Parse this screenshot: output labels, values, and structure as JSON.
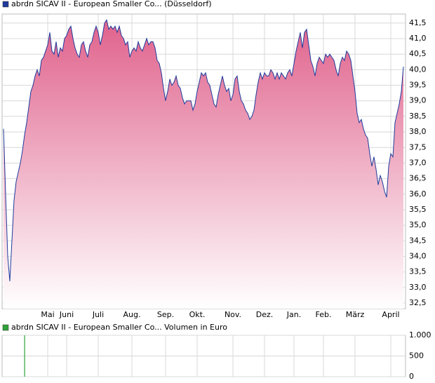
{
  "chart_data": [
    {
      "type": "area",
      "legend": "abrdn SICAV II - European Smaller Co... (Düsseldorf)",
      "color": "#1f3a9c",
      "fill_top": "#e0628c",
      "values": [
        38.1,
        36.0,
        34.0,
        33.2,
        34.5,
        35.8,
        36.4,
        36.7,
        37.0,
        37.4,
        37.9,
        38.3,
        38.8,
        39.3,
        39.5,
        39.8,
        40.0,
        39.8,
        40.3,
        40.4,
        40.6,
        40.8,
        41.2,
        40.6,
        40.5,
        40.9,
        40.4,
        40.7,
        40.6,
        41.0,
        41.1,
        41.3,
        41.4,
        41.0,
        40.7,
        40.5,
        40.4,
        40.8,
        40.9,
        40.6,
        40.4,
        40.8,
        40.9,
        41.2,
        41.4,
        41.2,
        40.8,
        41.1,
        41.5,
        41.6,
        41.3,
        41.4,
        41.3,
        41.4,
        41.2,
        41.4,
        41.1,
        41.0,
        40.8,
        40.9,
        40.4,
        40.6,
        40.7,
        40.6,
        40.9,
        40.7,
        40.6,
        40.8,
        41.0,
        40.8,
        40.9,
        40.9,
        40.7,
        40.3,
        40.2,
        39.9,
        39.4,
        39.0,
        39.3,
        39.7,
        39.5,
        39.6,
        39.8,
        39.5,
        39.4,
        39.1,
        38.9,
        39.0,
        39.0,
        39.0,
        38.7,
        38.9,
        39.3,
        39.6,
        39.9,
        39.8,
        39.9,
        39.6,
        39.5,
        39.2,
        38.9,
        38.8,
        39.2,
        39.5,
        39.8,
        39.5,
        39.3,
        39.4,
        39.0,
        39.2,
        39.7,
        39.8,
        39.3,
        39.0,
        38.9,
        38.7,
        38.6,
        38.4,
        38.5,
        38.7,
        39.2,
        39.6,
        39.9,
        39.7,
        39.9,
        39.8,
        39.8,
        40.0,
        39.9,
        39.7,
        39.9,
        39.7,
        39.9,
        39.8,
        39.7,
        39.9,
        40.0,
        39.8,
        40.2,
        40.6,
        40.9,
        41.2,
        40.7,
        41.2,
        41.3,
        40.8,
        40.3,
        40.1,
        39.8,
        40.2,
        40.4,
        40.3,
        40.2,
        40.5,
        40.4,
        40.5,
        40.4,
        40.3,
        40.0,
        39.8,
        40.2,
        40.4,
        40.3,
        40.6,
        40.5,
        40.3,
        39.8,
        39.3,
        38.6,
        38.3,
        38.4,
        38.1,
        37.9,
        37.8,
        37.3,
        36.9,
        37.2,
        36.8,
        36.3,
        36.6,
        36.4,
        36.1,
        35.9,
        36.9,
        37.3,
        37.2,
        38.3,
        38.6,
        38.9,
        39.3,
        40.1
      ],
      "xlim": [
        -0.67,
        191
      ],
      "xticks": [
        {
          "value": 21,
          "label": "Mai"
        },
        {
          "value": 30,
          "label": "Juni"
        },
        {
          "value": 45,
          "label": "Juli"
        },
        {
          "value": 61,
          "label": "Aug."
        },
        {
          "value": 77,
          "label": "Sep."
        },
        {
          "value": 92,
          "label": "Okt."
        },
        {
          "value": 109,
          "label": "Nov."
        },
        {
          "value": 124,
          "label": "Dez."
        },
        {
          "value": 138,
          "label": "Jan."
        },
        {
          "value": 152,
          "label": "Feb."
        },
        {
          "value": 167,
          "label": "März"
        },
        {
          "value": 184,
          "label": "April"
        }
      ],
      "ylim": [
        32.32,
        41.79
      ],
      "yticks": [
        {
          "value": 32.5,
          "label": "32,5"
        },
        {
          "value": 33,
          "label": "33,0"
        },
        {
          "value": 33.5,
          "label": "33,5"
        },
        {
          "value": 34,
          "label": "34,0"
        },
        {
          "value": 34.5,
          "label": "34,5"
        },
        {
          "value": 35,
          "label": "35,0"
        },
        {
          "value": 35.5,
          "label": "35,5"
        },
        {
          "value": 36,
          "label": "36,0"
        },
        {
          "value": 36.5,
          "label": "36,5"
        },
        {
          "value": 37,
          "label": "37,0"
        },
        {
          "value": 37.5,
          "label": "37,5"
        },
        {
          "value": 38,
          "label": "38,0"
        },
        {
          "value": 38.5,
          "label": "38,5"
        },
        {
          "value": 39,
          "label": "39,0"
        },
        {
          "value": 39.5,
          "label": "39,5"
        },
        {
          "value": 40,
          "label": "40,0"
        },
        {
          "value": 40.5,
          "label": "40,5"
        },
        {
          "value": 41,
          "label": "41,0"
        },
        {
          "value": 41.5,
          "label": "41,5"
        }
      ],
      "grid": true
    },
    {
      "type": "bar",
      "legend": "abrdn SICAV II - European Smaller Co... Volumen in Euro",
      "color": "#2ea33a",
      "x": [
        10
      ],
      "values": [
        1000
      ],
      "xlim": [
        -0.67,
        191
      ],
      "ylim": [
        0,
        1000
      ],
      "yticks": [
        0,
        500,
        {
          "value": 1000,
          "label": "1.000"
        }
      ],
      "grid": true
    }
  ]
}
